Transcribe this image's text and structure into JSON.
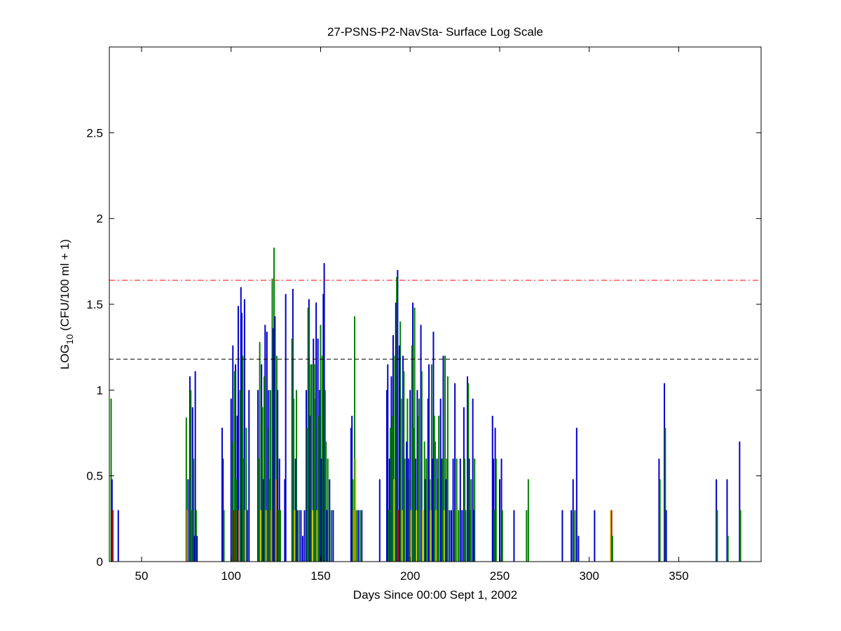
{
  "chart_data": {
    "type": "bar",
    "title": "27-PSNS-P2-NavSta- Surface Log Scale",
    "xlabel": "Days Since 00:00 Sept 1, 2002",
    "ylabel_prefix": "LOG",
    "ylabel_subscript": "10",
    "ylabel_suffix": " (CFU/100 ml + 1)",
    "xlim": [
      32,
      396
    ],
    "ylim": [
      0,
      3
    ],
    "xticks": [
      50,
      100,
      150,
      200,
      250,
      300,
      350
    ],
    "xtick_labels": [
      "50",
      "100",
      "150",
      "200",
      "250",
      "300",
      "350"
    ],
    "yticks": [
      0,
      0.5,
      1,
      1.5,
      2,
      2.5
    ],
    "ytick_labels": [
      "0",
      "0.5",
      "1",
      "1.5",
      "2",
      "2.5"
    ],
    "grid": false,
    "colors": {
      "blue": "#0000cc",
      "green": "#008000",
      "yellow": "#cccc00",
      "orange": "#ff8000",
      "red": "#cc0000",
      "ref_red": "#ff0000",
      "ref_black": "#000000"
    },
    "reference_lines": [
      {
        "y": 1.64,
        "color": "ref_red",
        "style": "dashdot"
      },
      {
        "y": 1.18,
        "color": "ref_black",
        "style": "dashed"
      }
    ],
    "bars": [
      {
        "x": 33.0,
        "y": 0.95,
        "c": "green"
      },
      {
        "x": 33.5,
        "y": 0.48,
        "c": "blue"
      },
      {
        "x": 34.0,
        "y": 0.3,
        "c": "red"
      },
      {
        "x": 37.0,
        "y": 0.3,
        "c": "blue"
      },
      {
        "x": 75.0,
        "y": 0.84,
        "c": "green"
      },
      {
        "x": 75.5,
        "y": 0.3,
        "c": "orange"
      },
      {
        "x": 76.0,
        "y": 0.48,
        "c": "blue"
      },
      {
        "x": 77.0,
        "y": 1.08,
        "c": "blue"
      },
      {
        "x": 77.5,
        "y": 1.0,
        "c": "green"
      },
      {
        "x": 78.0,
        "y": 0.3,
        "c": "green"
      },
      {
        "x": 78.5,
        "y": 0.9,
        "c": "blue"
      },
      {
        "x": 79.0,
        "y": 0.6,
        "c": "green"
      },
      {
        "x": 79.5,
        "y": 0.15,
        "c": "blue"
      },
      {
        "x": 80.0,
        "y": 1.11,
        "c": "blue"
      },
      {
        "x": 80.5,
        "y": 0.3,
        "c": "green"
      },
      {
        "x": 81.0,
        "y": 0.15,
        "c": "blue"
      },
      {
        "x": 95.0,
        "y": 0.78,
        "c": "blue"
      },
      {
        "x": 95.5,
        "y": 0.6,
        "c": "blue"
      },
      {
        "x": 96.0,
        "y": 0.3,
        "c": "green"
      },
      {
        "x": 100.0,
        "y": 0.95,
        "c": "blue"
      },
      {
        "x": 100.5,
        "y": 0.7,
        "c": "green"
      },
      {
        "x": 101.0,
        "y": 1.26,
        "c": "blue"
      },
      {
        "x": 101.5,
        "y": 0.3,
        "c": "red"
      },
      {
        "x": 102.0,
        "y": 1.11,
        "c": "green"
      },
      {
        "x": 102.5,
        "y": 1.15,
        "c": "blue"
      },
      {
        "x": 103.0,
        "y": 0.48,
        "c": "green"
      },
      {
        "x": 103.5,
        "y": 0.85,
        "c": "blue"
      },
      {
        "x": 104.0,
        "y": 1.49,
        "c": "blue"
      },
      {
        "x": 104.5,
        "y": 0.3,
        "c": "orange"
      },
      {
        "x": 105.0,
        "y": 1.0,
        "c": "green"
      },
      {
        "x": 105.5,
        "y": 1.6,
        "c": "blue"
      },
      {
        "x": 106.0,
        "y": 1.45,
        "c": "blue"
      },
      {
        "x": 106.5,
        "y": 1.2,
        "c": "green"
      },
      {
        "x": 107.0,
        "y": 0.6,
        "c": "green"
      },
      {
        "x": 107.5,
        "y": 1.53,
        "c": "blue"
      },
      {
        "x": 108.0,
        "y": 0.3,
        "c": "yellow"
      },
      {
        "x": 108.5,
        "y": 0.78,
        "c": "green"
      },
      {
        "x": 109.0,
        "y": 0.3,
        "c": "blue"
      },
      {
        "x": 110.0,
        "y": 1.0,
        "c": "blue"
      },
      {
        "x": 115.0,
        "y": 1.0,
        "c": "blue"
      },
      {
        "x": 115.5,
        "y": 0.6,
        "c": "green"
      },
      {
        "x": 116.0,
        "y": 1.28,
        "c": "green"
      },
      {
        "x": 116.5,
        "y": 0.3,
        "c": "yellow"
      },
      {
        "x": 117.0,
        "y": 1.15,
        "c": "blue"
      },
      {
        "x": 117.5,
        "y": 0.9,
        "c": "green"
      },
      {
        "x": 118.0,
        "y": 0.48,
        "c": "blue"
      },
      {
        "x": 118.5,
        "y": 1.08,
        "c": "green"
      },
      {
        "x": 119.0,
        "y": 1.38,
        "c": "blue"
      },
      {
        "x": 119.5,
        "y": 0.3,
        "c": "yellow"
      },
      {
        "x": 120.0,
        "y": 1.34,
        "c": "blue"
      },
      {
        "x": 120.5,
        "y": 0.78,
        "c": "green"
      },
      {
        "x": 121.0,
        "y": 1.0,
        "c": "blue"
      },
      {
        "x": 121.5,
        "y": 0.48,
        "c": "green"
      },
      {
        "x": 122.0,
        "y": 1.0,
        "c": "green"
      },
      {
        "x": 122.5,
        "y": 0.3,
        "c": "orange"
      },
      {
        "x": 123.0,
        "y": 1.65,
        "c": "green"
      },
      {
        "x": 123.5,
        "y": 1.36,
        "c": "blue"
      },
      {
        "x": 124.0,
        "y": 1.83,
        "c": "green"
      },
      {
        "x": 124.5,
        "y": 1.43,
        "c": "blue"
      },
      {
        "x": 125.0,
        "y": 0.48,
        "c": "orange"
      },
      {
        "x": 125.5,
        "y": 1.2,
        "c": "green"
      },
      {
        "x": 126.0,
        "y": 1.0,
        "c": "blue"
      },
      {
        "x": 126.5,
        "y": 0.3,
        "c": "green"
      },
      {
        "x": 127.0,
        "y": 0.6,
        "c": "blue"
      },
      {
        "x": 127.5,
        "y": 0.3,
        "c": "green"
      },
      {
        "x": 130.0,
        "y": 0.48,
        "c": "blue"
      },
      {
        "x": 130.5,
        "y": 1.56,
        "c": "blue"
      },
      {
        "x": 134.0,
        "y": 1.3,
        "c": "green"
      },
      {
        "x": 134.5,
        "y": 1.59,
        "c": "blue"
      },
      {
        "x": 135.0,
        "y": 0.95,
        "c": "green"
      },
      {
        "x": 135.5,
        "y": 0.3,
        "c": "yellow"
      },
      {
        "x": 136.0,
        "y": 0.6,
        "c": "blue"
      },
      {
        "x": 136.5,
        "y": 1.0,
        "c": "green"
      },
      {
        "x": 137.0,
        "y": 0.3,
        "c": "blue"
      },
      {
        "x": 138.0,
        "y": 0.3,
        "c": "green"
      },
      {
        "x": 139.0,
        "y": 0.3,
        "c": "blue"
      },
      {
        "x": 140.0,
        "y": 0.15,
        "c": "blue"
      },
      {
        "x": 141.0,
        "y": 0.3,
        "c": "blue"
      },
      {
        "x": 142.0,
        "y": 1.0,
        "c": "blue"
      },
      {
        "x": 142.5,
        "y": 0.78,
        "c": "green"
      },
      {
        "x": 143.0,
        "y": 1.48,
        "c": "green"
      },
      {
        "x": 143.5,
        "y": 1.53,
        "c": "blue"
      },
      {
        "x": 144.0,
        "y": 0.85,
        "c": "blue"
      },
      {
        "x": 144.5,
        "y": 1.15,
        "c": "green"
      },
      {
        "x": 145.0,
        "y": 1.15,
        "c": "green"
      },
      {
        "x": 145.5,
        "y": 0.3,
        "c": "yellow"
      },
      {
        "x": 146.0,
        "y": 1.3,
        "c": "blue"
      },
      {
        "x": 146.5,
        "y": 1.15,
        "c": "green"
      },
      {
        "x": 147.0,
        "y": 0.95,
        "c": "green"
      },
      {
        "x": 147.5,
        "y": 1.51,
        "c": "blue"
      },
      {
        "x": 148.0,
        "y": 0.3,
        "c": "yellow"
      },
      {
        "x": 148.5,
        "y": 1.3,
        "c": "blue"
      },
      {
        "x": 149.0,
        "y": 0.85,
        "c": "green"
      },
      {
        "x": 149.5,
        "y": 1.0,
        "c": "blue"
      },
      {
        "x": 150.0,
        "y": 1.38,
        "c": "green"
      },
      {
        "x": 150.5,
        "y": 0.6,
        "c": "blue"
      },
      {
        "x": 151.0,
        "y": 1.2,
        "c": "green"
      },
      {
        "x": 151.5,
        "y": 1.56,
        "c": "blue"
      },
      {
        "x": 152.0,
        "y": 1.74,
        "c": "blue"
      },
      {
        "x": 152.5,
        "y": 1.0,
        "c": "green"
      },
      {
        "x": 153.0,
        "y": 0.7,
        "c": "green"
      },
      {
        "x": 153.5,
        "y": 0.3,
        "c": "blue"
      },
      {
        "x": 154.0,
        "y": 0.6,
        "c": "green"
      },
      {
        "x": 155.0,
        "y": 0.48,
        "c": "blue"
      },
      {
        "x": 156.0,
        "y": 0.3,
        "c": "green"
      },
      {
        "x": 157.0,
        "y": 0.3,
        "c": "blue"
      },
      {
        "x": 167.0,
        "y": 0.78,
        "c": "blue"
      },
      {
        "x": 167.5,
        "y": 0.85,
        "c": "blue"
      },
      {
        "x": 168.0,
        "y": 0.48,
        "c": "green"
      },
      {
        "x": 168.5,
        "y": 0.3,
        "c": "orange"
      },
      {
        "x": 169.0,
        "y": 1.43,
        "c": "green"
      },
      {
        "x": 169.5,
        "y": 0.6,
        "c": "yellow"
      },
      {
        "x": 170.0,
        "y": 0.3,
        "c": "green"
      },
      {
        "x": 171.0,
        "y": 0.3,
        "c": "blue"
      },
      {
        "x": 172.0,
        "y": 0.3,
        "c": "green"
      },
      {
        "x": 173.0,
        "y": 0.3,
        "c": "blue"
      },
      {
        "x": 183.0,
        "y": 0.48,
        "c": "blue"
      },
      {
        "x": 187.0,
        "y": 1.0,
        "c": "blue"
      },
      {
        "x": 187.5,
        "y": 1.15,
        "c": "blue"
      },
      {
        "x": 188.0,
        "y": 0.3,
        "c": "green"
      },
      {
        "x": 188.5,
        "y": 0.6,
        "c": "blue"
      },
      {
        "x": 189.0,
        "y": 0.78,
        "c": "green"
      },
      {
        "x": 189.5,
        "y": 1.08,
        "c": "blue"
      },
      {
        "x": 190.0,
        "y": 0.85,
        "c": "green"
      },
      {
        "x": 190.5,
        "y": 1.32,
        "c": "blue"
      },
      {
        "x": 191.0,
        "y": 0.48,
        "c": "yellow"
      },
      {
        "x": 191.5,
        "y": 1.2,
        "c": "green"
      },
      {
        "x": 192.0,
        "y": 1.51,
        "c": "blue"
      },
      {
        "x": 192.5,
        "y": 1.66,
        "c": "green"
      },
      {
        "x": 193.0,
        "y": 1.7,
        "c": "blue"
      },
      {
        "x": 193.5,
        "y": 0.3,
        "c": "red"
      },
      {
        "x": 194.0,
        "y": 1.26,
        "c": "blue"
      },
      {
        "x": 194.5,
        "y": 1.4,
        "c": "green"
      },
      {
        "x": 195.0,
        "y": 0.95,
        "c": "green"
      },
      {
        "x": 195.5,
        "y": 0.3,
        "c": "yellow"
      },
      {
        "x": 196.0,
        "y": 1.2,
        "c": "blue"
      },
      {
        "x": 196.5,
        "y": 1.11,
        "c": "green"
      },
      {
        "x": 197.0,
        "y": 0.6,
        "c": "green"
      },
      {
        "x": 198.0,
        "y": 0.7,
        "c": "blue"
      },
      {
        "x": 198.5,
        "y": 0.95,
        "c": "green"
      },
      {
        "x": 199.0,
        "y": 0.6,
        "c": "blue"
      },
      {
        "x": 199.5,
        "y": 0.48,
        "c": "green"
      },
      {
        "x": 200.0,
        "y": 1.0,
        "c": "blue"
      },
      {
        "x": 200.5,
        "y": 0.3,
        "c": "yellow"
      },
      {
        "x": 201.0,
        "y": 1.26,
        "c": "green"
      },
      {
        "x": 201.5,
        "y": 1.51,
        "c": "blue"
      },
      {
        "x": 202.0,
        "y": 0.78,
        "c": "green"
      },
      {
        "x": 202.5,
        "y": 1.48,
        "c": "green"
      },
      {
        "x": 203.0,
        "y": 0.6,
        "c": "blue"
      },
      {
        "x": 203.5,
        "y": 0.3,
        "c": "yellow"
      },
      {
        "x": 204.0,
        "y": 1.0,
        "c": "blue"
      },
      {
        "x": 204.5,
        "y": 0.85,
        "c": "green"
      },
      {
        "x": 205.0,
        "y": 0.95,
        "c": "green"
      },
      {
        "x": 206.0,
        "y": 1.38,
        "c": "blue"
      },
      {
        "x": 206.5,
        "y": 1.11,
        "c": "green"
      },
      {
        "x": 207.0,
        "y": 0.3,
        "c": "yellow"
      },
      {
        "x": 208.0,
        "y": 0.7,
        "c": "green"
      },
      {
        "x": 208.5,
        "y": 0.48,
        "c": "blue"
      },
      {
        "x": 209.0,
        "y": 0.6,
        "c": "green"
      },
      {
        "x": 210.0,
        "y": 0.95,
        "c": "blue"
      },
      {
        "x": 210.5,
        "y": 1.15,
        "c": "blue"
      },
      {
        "x": 211.0,
        "y": 0.48,
        "c": "green"
      },
      {
        "x": 211.5,
        "y": 0.3,
        "c": "yellow"
      },
      {
        "x": 212.0,
        "y": 1.15,
        "c": "green"
      },
      {
        "x": 212.5,
        "y": 0.6,
        "c": "blue"
      },
      {
        "x": 213.0,
        "y": 1.34,
        "c": "blue"
      },
      {
        "x": 213.5,
        "y": 0.85,
        "c": "green"
      },
      {
        "x": 214.0,
        "y": 0.7,
        "c": "green"
      },
      {
        "x": 214.5,
        "y": 0.3,
        "c": "yellow"
      },
      {
        "x": 215.0,
        "y": 0.6,
        "c": "blue"
      },
      {
        "x": 215.5,
        "y": 0.48,
        "c": "green"
      },
      {
        "x": 216.0,
        "y": 0.85,
        "c": "green"
      },
      {
        "x": 217.0,
        "y": 0.95,
        "c": "blue"
      },
      {
        "x": 217.5,
        "y": 0.6,
        "c": "blue"
      },
      {
        "x": 218.0,
        "y": 0.6,
        "c": "green"
      },
      {
        "x": 218.5,
        "y": 1.2,
        "c": "blue"
      },
      {
        "x": 219.0,
        "y": 0.3,
        "c": "yellow"
      },
      {
        "x": 219.5,
        "y": 1.2,
        "c": "green"
      },
      {
        "x": 220.0,
        "y": 0.48,
        "c": "blue"
      },
      {
        "x": 220.5,
        "y": 0.6,
        "c": "green"
      },
      {
        "x": 221.0,
        "y": 1.08,
        "c": "green"
      },
      {
        "x": 222.0,
        "y": 0.3,
        "c": "blue"
      },
      {
        "x": 223.0,
        "y": 0.3,
        "c": "blue"
      },
      {
        "x": 224.0,
        "y": 0.6,
        "c": "blue"
      },
      {
        "x": 224.5,
        "y": 0.3,
        "c": "green"
      },
      {
        "x": 225.0,
        "y": 1.04,
        "c": "blue"
      },
      {
        "x": 226.0,
        "y": 0.6,
        "c": "green"
      },
      {
        "x": 226.5,
        "y": 0.3,
        "c": "yellow"
      },
      {
        "x": 227.0,
        "y": 0.3,
        "c": "green"
      },
      {
        "x": 228.0,
        "y": 0.6,
        "c": "blue"
      },
      {
        "x": 229.0,
        "y": 0.3,
        "c": "blue"
      },
      {
        "x": 230.0,
        "y": 0.9,
        "c": "blue"
      },
      {
        "x": 230.5,
        "y": 0.6,
        "c": "green"
      },
      {
        "x": 231.0,
        "y": 0.3,
        "c": "green"
      },
      {
        "x": 232.0,
        "y": 1.08,
        "c": "blue"
      },
      {
        "x": 232.5,
        "y": 1.04,
        "c": "green"
      },
      {
        "x": 233.0,
        "y": 0.6,
        "c": "blue"
      },
      {
        "x": 233.5,
        "y": 0.3,
        "c": "green"
      },
      {
        "x": 234.0,
        "y": 0.48,
        "c": "green"
      },
      {
        "x": 235.0,
        "y": 0.95,
        "c": "blue"
      },
      {
        "x": 235.5,
        "y": 0.3,
        "c": "blue"
      },
      {
        "x": 236.0,
        "y": 0.6,
        "c": "green"
      },
      {
        "x": 246.0,
        "y": 0.85,
        "c": "blue"
      },
      {
        "x": 246.5,
        "y": 0.6,
        "c": "blue"
      },
      {
        "x": 247.0,
        "y": 0.3,
        "c": "green"
      },
      {
        "x": 247.5,
        "y": 0.78,
        "c": "blue"
      },
      {
        "x": 248.0,
        "y": 0.6,
        "c": "green"
      },
      {
        "x": 250.0,
        "y": 0.48,
        "c": "blue"
      },
      {
        "x": 251.0,
        "y": 0.6,
        "c": "blue"
      },
      {
        "x": 251.5,
        "y": 0.3,
        "c": "green"
      },
      {
        "x": 258.0,
        "y": 0.3,
        "c": "blue"
      },
      {
        "x": 265.0,
        "y": 0.3,
        "c": "green"
      },
      {
        "x": 266.0,
        "y": 0.48,
        "c": "green"
      },
      {
        "x": 285.0,
        "y": 0.3,
        "c": "blue"
      },
      {
        "x": 290.0,
        "y": 0.3,
        "c": "blue"
      },
      {
        "x": 291.0,
        "y": 0.48,
        "c": "blue"
      },
      {
        "x": 292.0,
        "y": 0.3,
        "c": "green"
      },
      {
        "x": 293.0,
        "y": 0.78,
        "c": "blue"
      },
      {
        "x": 294.0,
        "y": 0.15,
        "c": "blue"
      },
      {
        "x": 303.0,
        "y": 0.3,
        "c": "blue"
      },
      {
        "x": 312.0,
        "y": 0.3,
        "c": "yellow"
      },
      {
        "x": 312.5,
        "y": 0.3,
        "c": "red"
      },
      {
        "x": 313.0,
        "y": 0.15,
        "c": "green"
      },
      {
        "x": 339.0,
        "y": 0.6,
        "c": "blue"
      },
      {
        "x": 339.5,
        "y": 0.48,
        "c": "green"
      },
      {
        "x": 342.0,
        "y": 1.04,
        "c": "blue"
      },
      {
        "x": 342.5,
        "y": 0.78,
        "c": "green"
      },
      {
        "x": 343.0,
        "y": 0.3,
        "c": "blue"
      },
      {
        "x": 371.0,
        "y": 0.48,
        "c": "blue"
      },
      {
        "x": 371.5,
        "y": 0.3,
        "c": "green"
      },
      {
        "x": 377.0,
        "y": 0.48,
        "c": "blue"
      },
      {
        "x": 377.5,
        "y": 0.15,
        "c": "green"
      },
      {
        "x": 384.0,
        "y": 0.7,
        "c": "blue"
      },
      {
        "x": 384.5,
        "y": 0.3,
        "c": "green"
      }
    ]
  }
}
